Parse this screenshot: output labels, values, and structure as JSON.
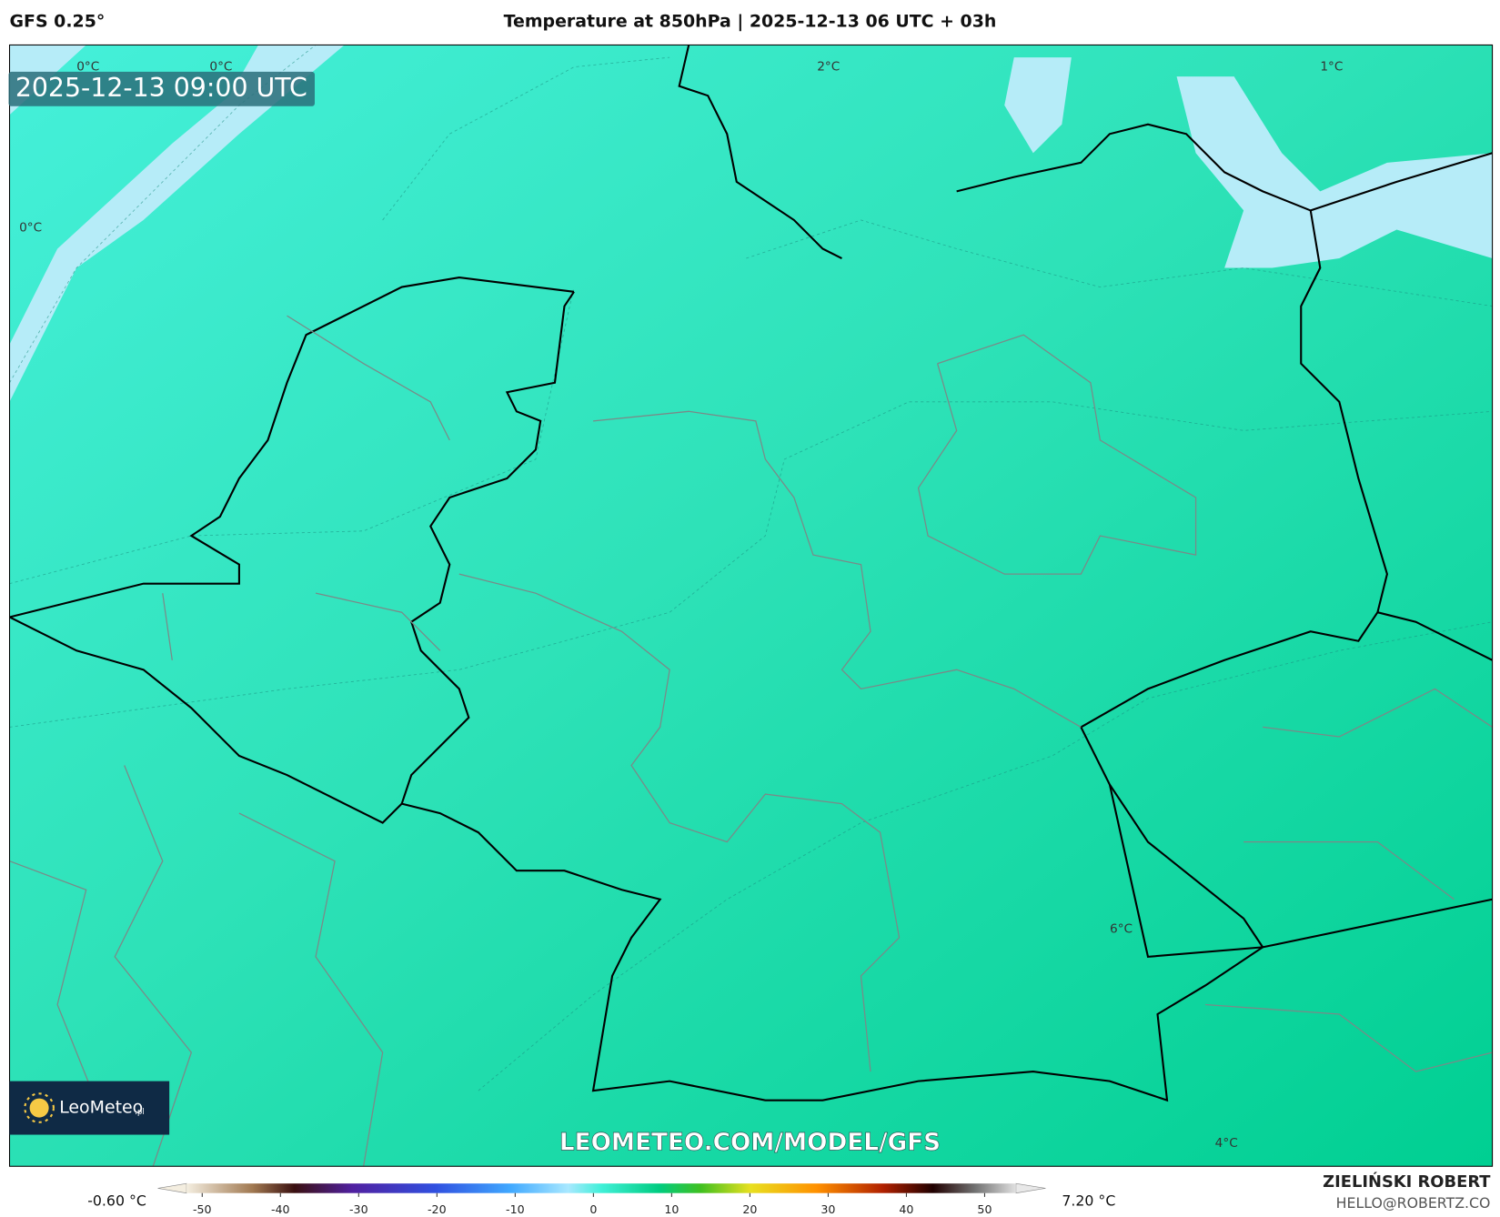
{
  "header": {
    "model": "GFS 0.25°",
    "title": "Temperature at 850hPa | 2025-12-13 06 UTC + 03h"
  },
  "timestamp": "2025-12-13 09:00 UTC",
  "contour_labels": [
    "0°C",
    "0°C",
    "0°C",
    "2°C",
    "1°C",
    "6°C",
    "4°C"
  ],
  "watermark": "LEOMETEO.COM/MODEL/GFS",
  "logo": {
    "name": "LeoMeteo",
    "suffix": ".pl"
  },
  "colorbar": {
    "min_label": "-0.60 °C",
    "max_label": "7.20 °C",
    "range": [
      -52,
      54
    ],
    "ticks": [
      -50,
      -40,
      -30,
      -20,
      -10,
      0,
      10,
      20,
      30,
      40,
      50
    ]
  },
  "author": {
    "name": "ZIELIŃSKI ROBERT",
    "email": "HELLO@ROBERTZ.CO"
  }
}
